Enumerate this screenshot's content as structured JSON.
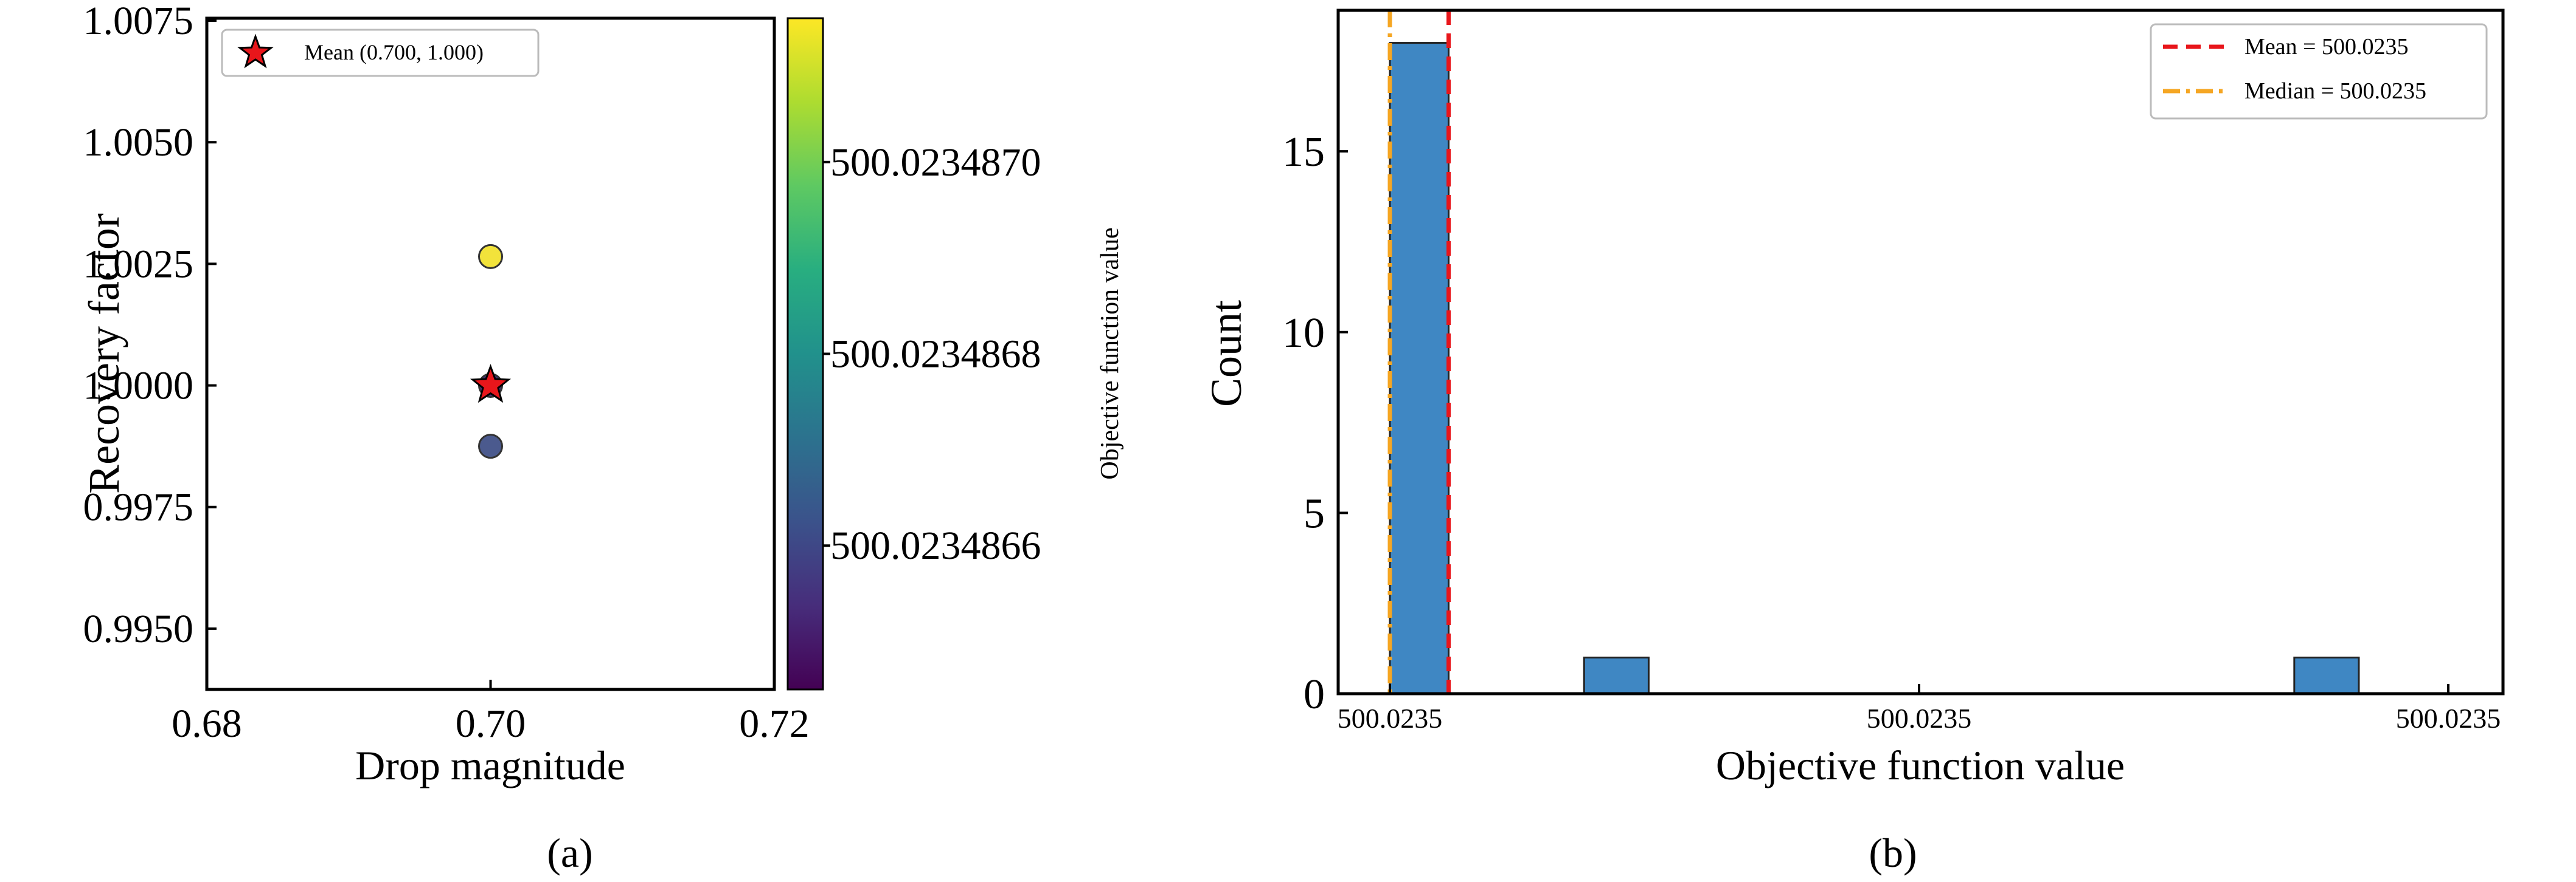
{
  "chart_data": [
    {
      "type": "scatter",
      "panel_label": "(a)",
      "xlabel": "Drop magnitude",
      "ylabel": "Recovery factor",
      "xlim": [
        0.68,
        0.72
      ],
      "ylim": [
        0.99375,
        1.00755
      ],
      "xticks": [
        "0.68",
        "0.70",
        "0.72"
      ],
      "xtick_values": [
        0.68,
        0.7,
        0.72
      ],
      "yticks": [
        "0.9950",
        "0.9975",
        "1.0000",
        "1.0025",
        "1.0050",
        "1.0075"
      ],
      "ytick_values": [
        0.995,
        0.9975,
        1.0,
        1.0025,
        1.005,
        1.0075
      ],
      "points": [
        {
          "x": 0.7,
          "y": 1.00265,
          "value": 500.0234871,
          "color": "#f2e33b"
        },
        {
          "x": 0.7,
          "y": 0.99875,
          "value": 500.0234866,
          "color": "#4b5a8e"
        },
        {
          "x": 0.7,
          "y": 1.0,
          "value": 500.0234866,
          "color": "#46347a"
        }
      ],
      "mean_marker": {
        "x": 0.7,
        "y": 1.0,
        "color": "#e8161b"
      },
      "legend": {
        "label": "Mean (0.700, 1.000)",
        "position": "top-left"
      },
      "colorbar": {
        "label": "Objective function value",
        "ticks": [
          "500.0234866",
          "500.0234868",
          "500.0234870"
        ],
        "tick_values": [
          500.0234866,
          500.0234868,
          500.023487
        ],
        "range": [
          500.02348645,
          500.02348715
        ],
        "colormap": "viridis",
        "stops": [
          "#440154",
          "#472d7b",
          "#3b528b",
          "#2c728e",
          "#21918c",
          "#28ae80",
          "#5ec962",
          "#addc30",
          "#fde725"
        ]
      },
      "grid": false
    },
    {
      "type": "bar",
      "panel_label": "(b)",
      "xlabel": "Objective function value",
      "ylabel": "Count",
      "xlim": [
        0,
        1
      ],
      "ylim": [
        0,
        18.9
      ],
      "xticks": [
        "500.0235",
        "500.0235",
        "500.0235"
      ],
      "xtick_values": [
        0.0,
        0.5,
        1.0
      ],
      "yticks": [
        "0",
        "5",
        "10",
        "15"
      ],
      "ytick_values": [
        0,
        5,
        10,
        15
      ],
      "bins": [
        {
          "x0": 0.0,
          "x1": 0.0555,
          "count": 18
        },
        {
          "x0": 0.1835,
          "x1": 0.2445,
          "count": 1
        },
        {
          "x0": 0.8545,
          "x1": 0.9155,
          "count": 1
        }
      ],
      "bar_color": "#3f87c3",
      "mean_line": {
        "x": 0.0555,
        "label": "Mean = 500.0235",
        "color": "#e8161b"
      },
      "median_line": {
        "x": 0.0,
        "label": "Median = 500.0235",
        "color": "#f5a623"
      },
      "legend_position": "top-right",
      "grid": false
    }
  ]
}
